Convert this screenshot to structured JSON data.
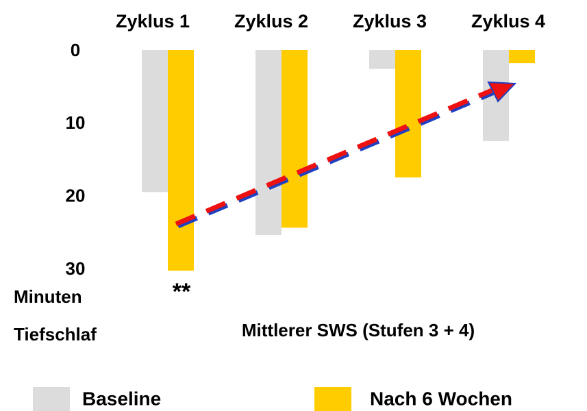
{
  "chart_data": {
    "type": "bar",
    "categories": [
      "Zyklus 1",
      "Zyklus 2",
      "Zyklus 3",
      "Zyklus 4"
    ],
    "series": [
      {
        "name": "Baseline",
        "color": "#dcdcdc",
        "values": [
          19.5,
          25.4,
          2.6,
          12.5
        ]
      },
      {
        "name": "Nach 6 Wochen",
        "color": "#ffcc00",
        "values": [
          30.3,
          24.4,
          17.5,
          1.8
        ]
      }
    ],
    "ylim": [
      0,
      30
    ],
    "yticks": [
      0,
      10,
      20,
      30
    ],
    "y_inverted": true,
    "ylabel": [
      "Minuten",
      "Tiefschlaf"
    ],
    "xlabel": "Mittlerer SWS (Stufen 3 + 4)",
    "annotation": "**"
  }
}
